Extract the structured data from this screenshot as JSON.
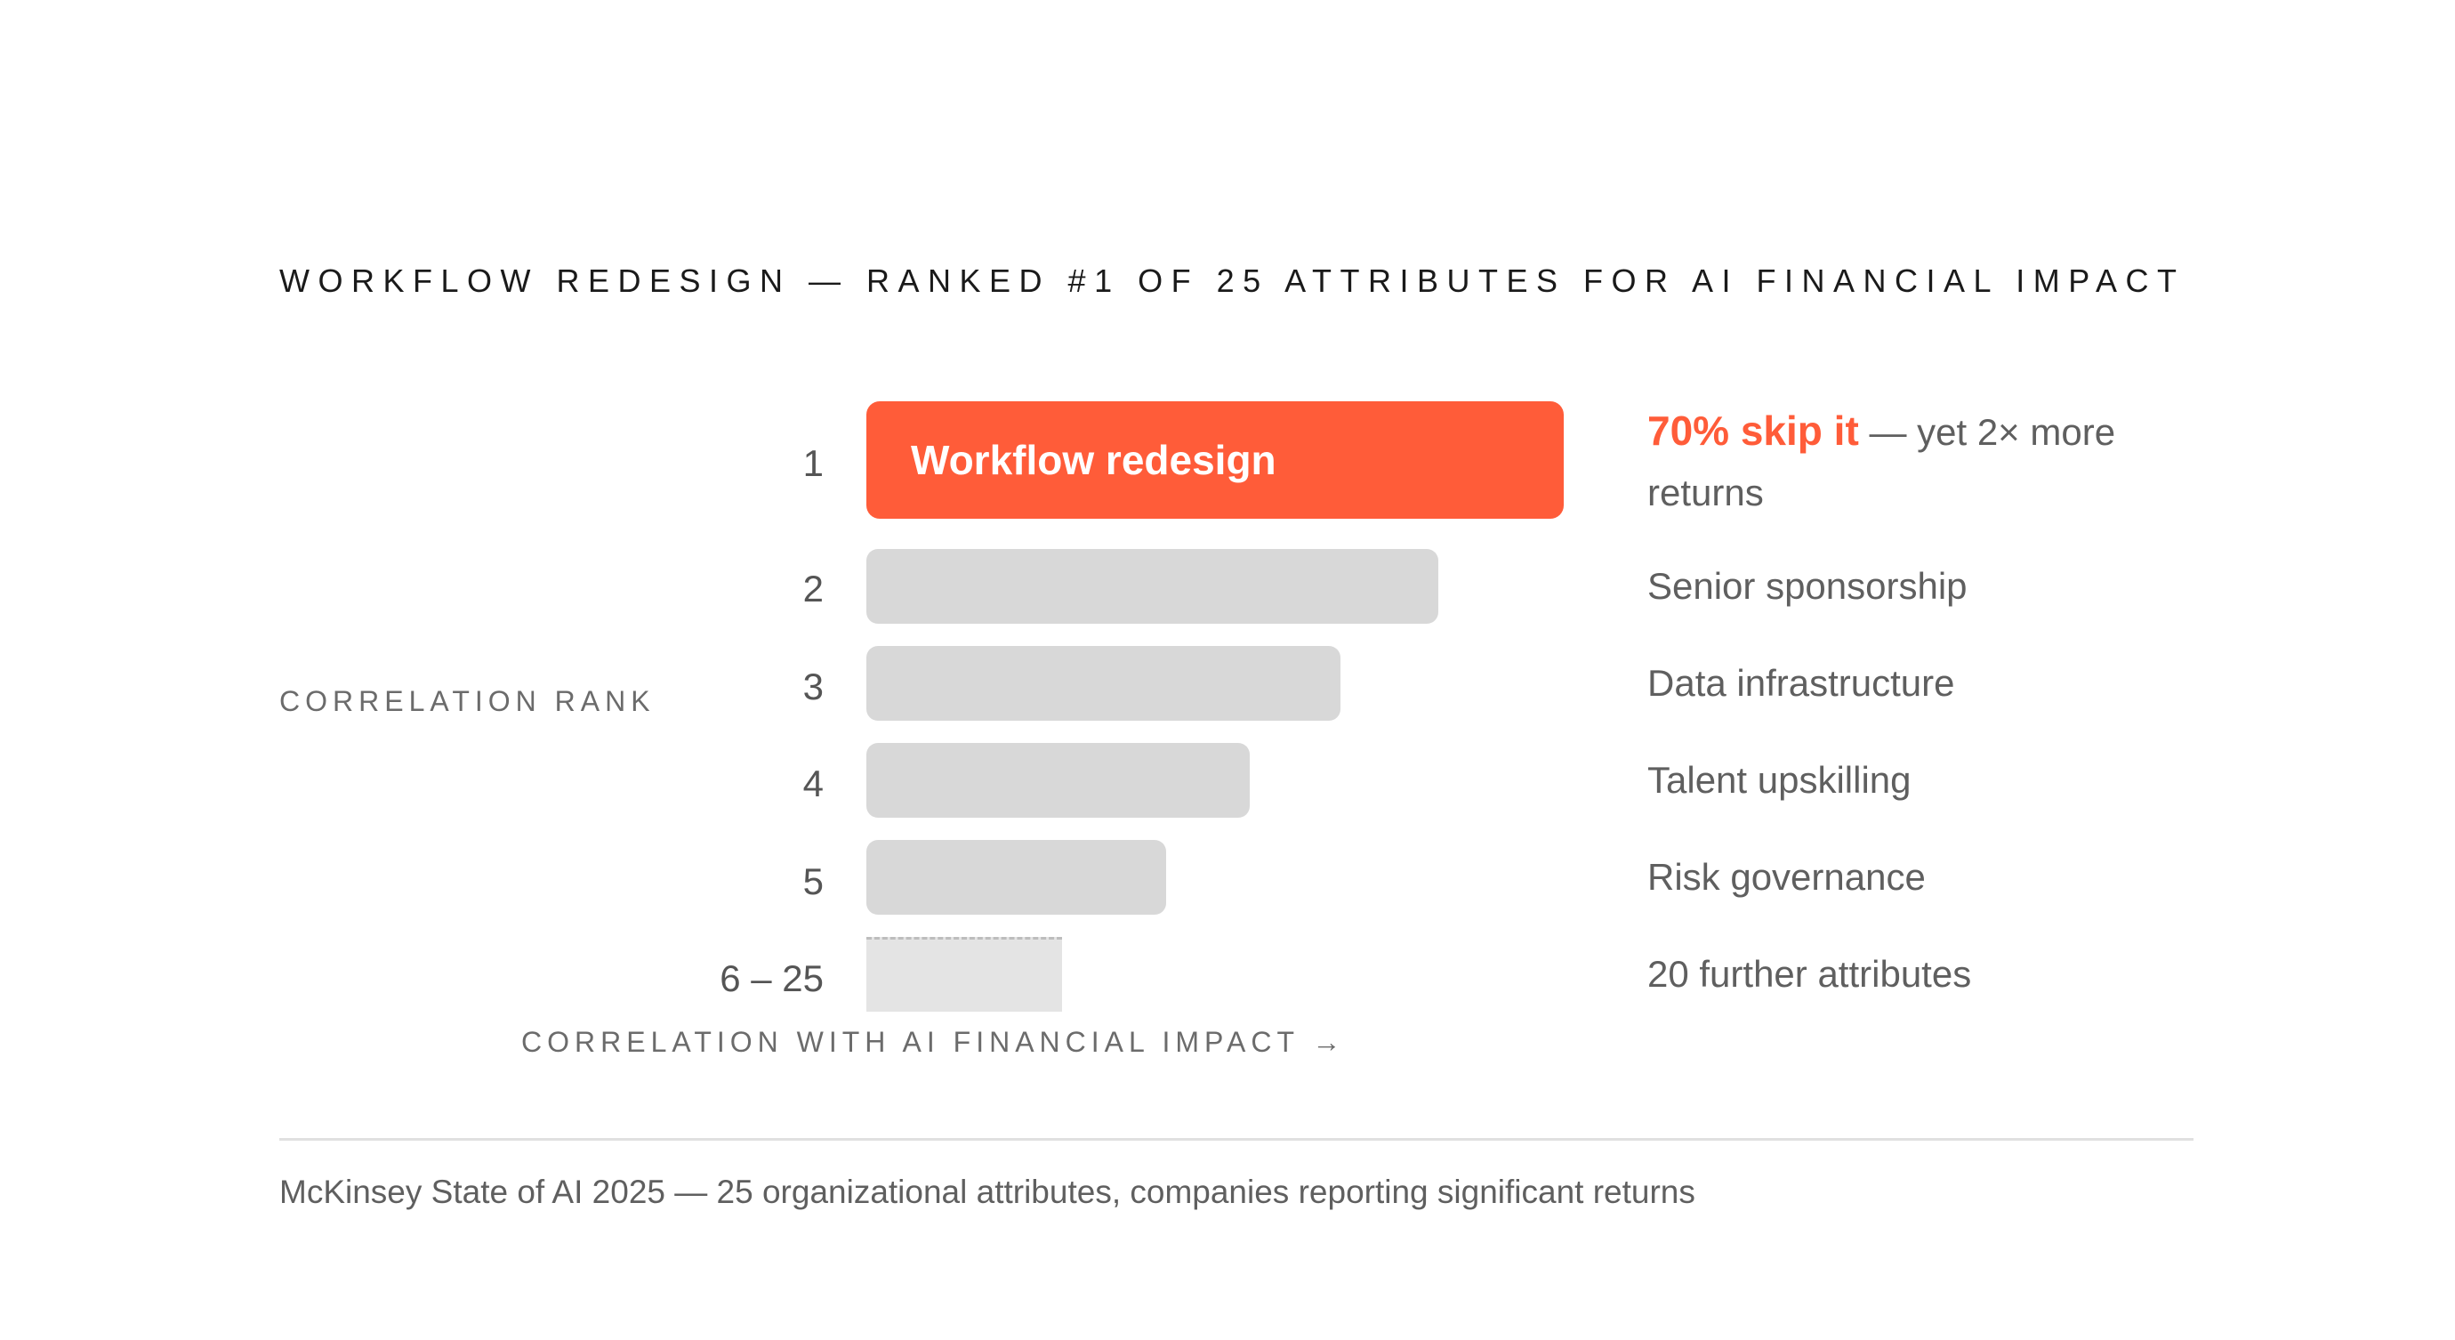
{
  "chart_data": {
    "type": "bar",
    "orientation": "horizontal",
    "title": "WORKFLOW REDESIGN — RANKED #1 OF 25 ATTRIBUTES FOR AI FINANCIAL IMPACT",
    "ylabel": "CORRELATION RANK",
    "xlabel": "CORRELATION WITH AI FINANCIAL IMPACT →",
    "categories": [
      "1",
      "2",
      "3",
      "4",
      "5",
      "6 – 25"
    ],
    "values": [
      1.0,
      0.82,
      0.68,
      0.55,
      0.43,
      0.28
    ],
    "xlim": [
      0,
      1
    ],
    "grid": false,
    "highlight_color": "#ff5c39",
    "bar_color": "#d8d8d8",
    "rest_color": "#e4e4e4",
    "top_bar_label": "Workflow redesign",
    "annotations": {
      "highlight": "70% skip it",
      "highlight_rest": " — yet 2× more returns",
      "items": [
        "Senior sponsorship",
        "Data infrastructure",
        "Talent upskilling",
        "Risk governance",
        "20 further attributes"
      ]
    }
  },
  "source": "McKinsey State of AI 2025 — 25 organizational attributes, companies reporting significant returns"
}
